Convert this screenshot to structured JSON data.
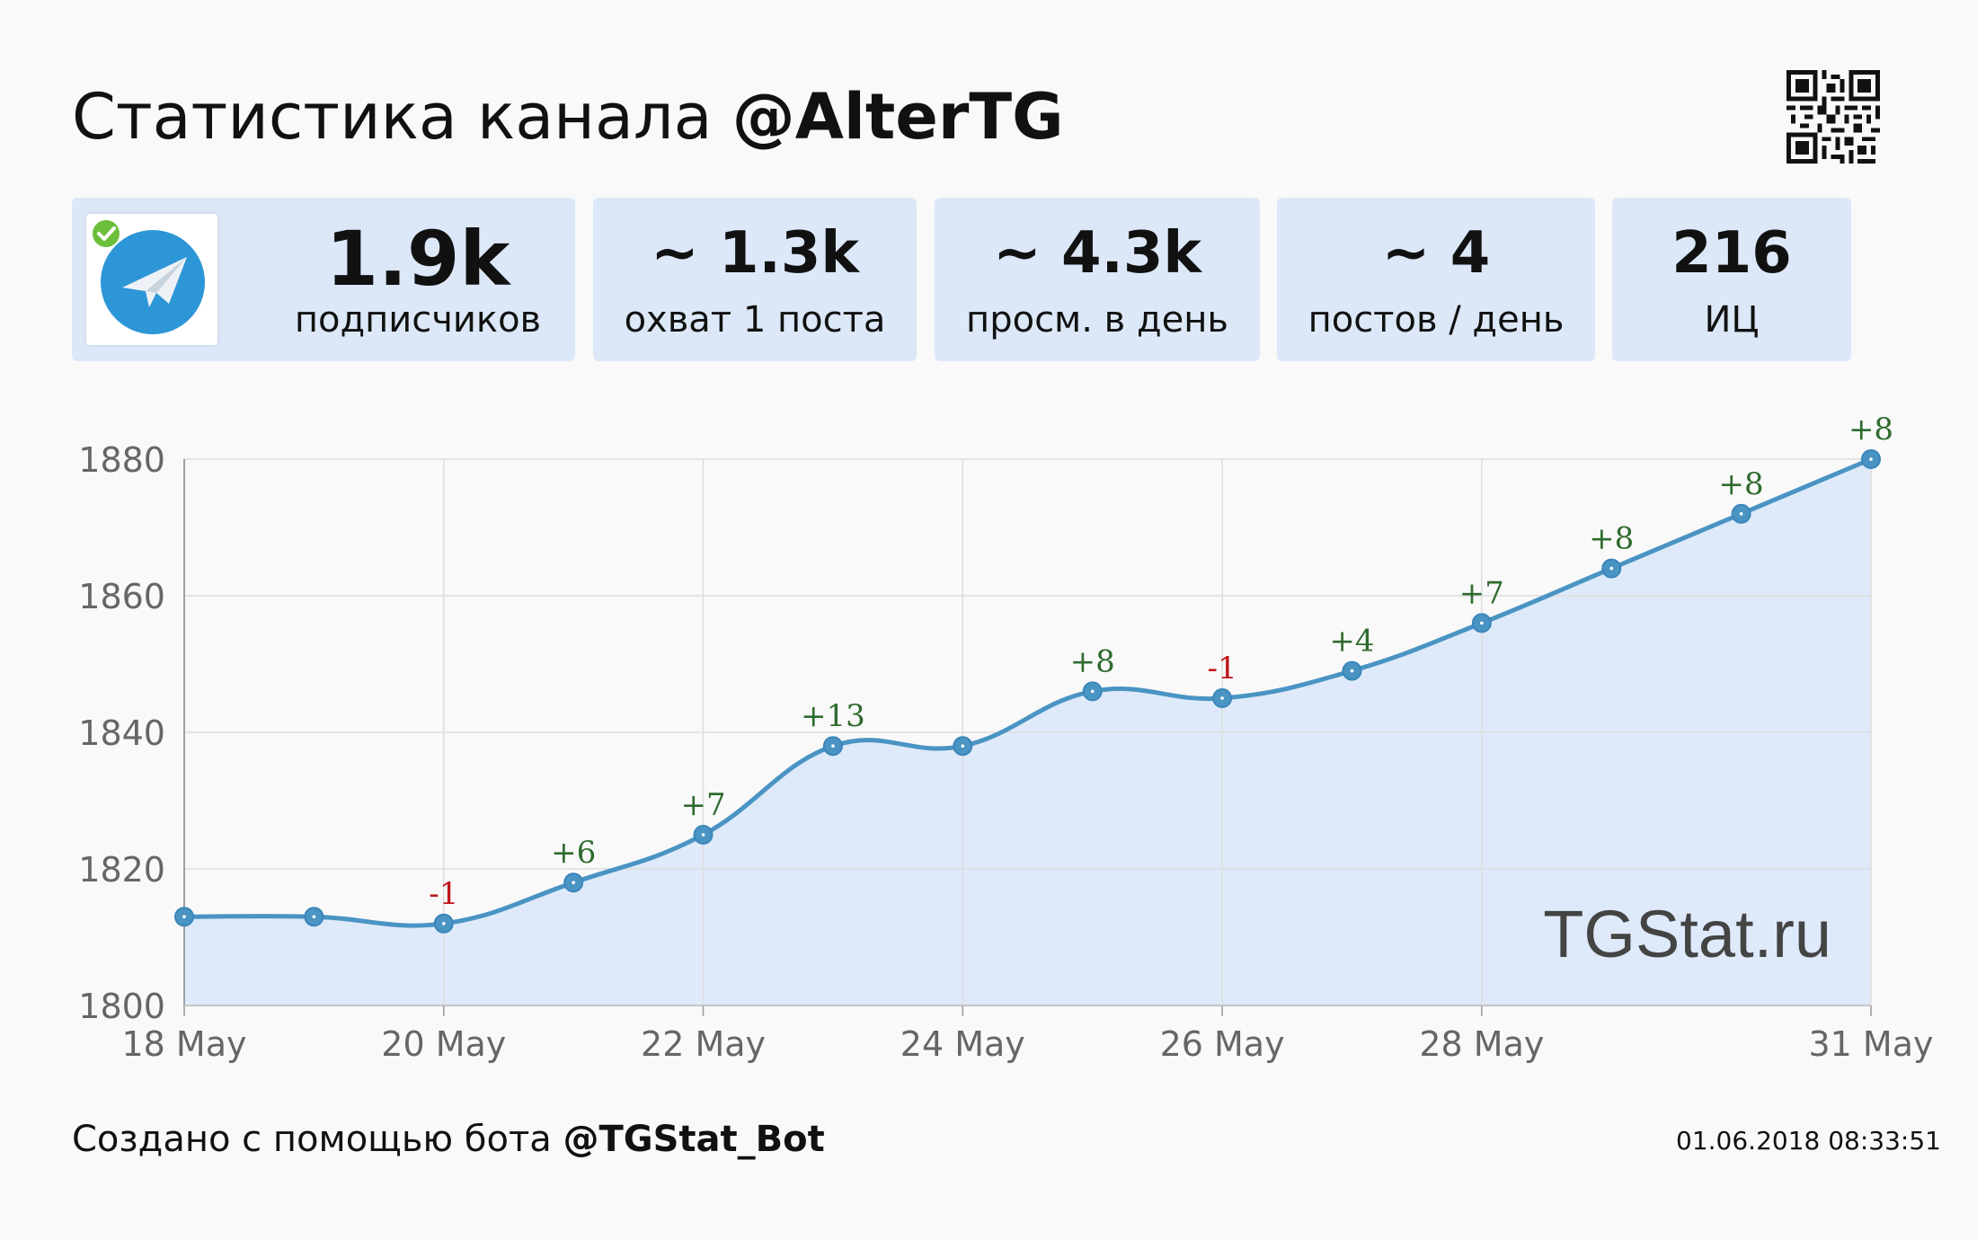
{
  "header": {
    "title_prefix": "Статистика канала ",
    "channel": "@AlterTG"
  },
  "icons": {
    "qr": "qr-code-icon",
    "avatar": "paper-plane-jet-icon",
    "verified": "verified-badge-icon"
  },
  "stats": [
    {
      "value": "1.9k",
      "label": "подписчиков"
    },
    {
      "value": "~ 1.3k",
      "label": "охват 1 поста"
    },
    {
      "value": "~ 4.3k",
      "label": "просм. в день"
    },
    {
      "value": "~ 4",
      "label": "постов / день"
    },
    {
      "value": "216",
      "label": "ИЦ"
    }
  ],
  "chart_data": {
    "type": "area",
    "x": [
      "18 May",
      "19 May",
      "20 May",
      "21 May",
      "22 May",
      "23 May",
      "24 May",
      "25 May",
      "26 May",
      "27 May",
      "28 May",
      "29 May",
      "30 May",
      "31 May"
    ],
    "values": [
      1813,
      1813,
      1812,
      1818,
      1825,
      1838,
      1838,
      1846,
      1845,
      1849,
      1856,
      1864,
      1872,
      1880
    ],
    "point_labels": [
      "",
      "",
      "-1",
      "+6",
      "+7",
      "+13",
      "",
      "+8",
      "-1",
      "+4",
      "+7",
      "+8",
      "+8",
      "+8"
    ],
    "x_ticks": [
      "18 May",
      "20 May",
      "22 May",
      "24 May",
      "26 May",
      "28 May",
      "31 May"
    ],
    "y_ticks": [
      1800,
      1820,
      1840,
      1860,
      1880
    ],
    "ylim": [
      1800,
      1880
    ],
    "grid": true,
    "watermark": "TGStat.ru",
    "colors": {
      "line": "#4a94c4",
      "fill": "#deeafa",
      "positive": "#2e6b2e",
      "negative": "#c0141c",
      "grid": "#dddddd",
      "axis_text": "#666666"
    }
  },
  "footer": {
    "prefix": "Создано с помощью бота ",
    "bot": "@TGStat_Bot",
    "timestamp": "01.06.2018 08:33:51"
  }
}
